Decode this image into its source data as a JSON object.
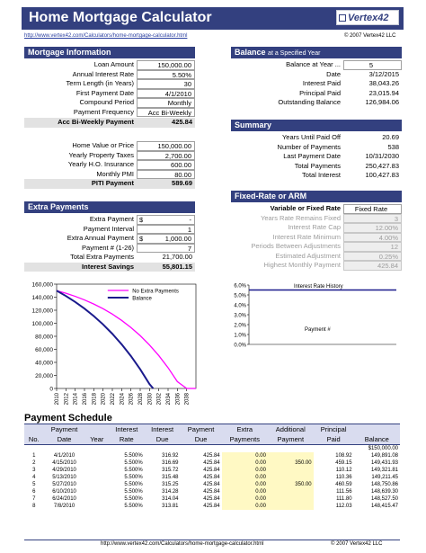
{
  "header": {
    "title": "Home Mortgage Calculator",
    "logo_text": "Vertex42",
    "url": "http://www.vertex42.com/Calculators/home-mortgage-calculator.html",
    "copyright": "© 2007 Vertex42 LLC"
  },
  "mortgage": {
    "title": "Mortgage Information",
    "rows": [
      {
        "label": "Loan Amount",
        "value": "150,000.00"
      },
      {
        "label": "Annual Interest Rate",
        "value": "5.50%"
      },
      {
        "label": "Term Length (in Years)",
        "value": "30"
      },
      {
        "label": "First Payment Date",
        "value": "4/1/2010"
      },
      {
        "label": "Compound Period",
        "value": "Monthly"
      },
      {
        "label": "Payment Frequency",
        "value": "Acc Bi-Weekly"
      }
    ],
    "payment_label": "Acc Bi-Weekly Payment",
    "payment_value": "425.84"
  },
  "home": {
    "rows": [
      {
        "label": "Home Value or Price",
        "value": "150,000.00"
      },
      {
        "label": "Yearly Property Taxes",
        "value": "2,700.00"
      },
      {
        "label": "Yearly H.O. Insurance",
        "value": "600.00"
      },
      {
        "label": "Monthly PMI",
        "value": "80.00"
      }
    ],
    "piti_label": "PITI Payment",
    "piti_value": "589.69"
  },
  "extra": {
    "title": "Extra Payments",
    "rows": [
      {
        "label": "Extra Payment",
        "sym": "$",
        "value": "-"
      },
      {
        "label": "Payment Interval",
        "sym": "",
        "value": "1"
      },
      {
        "label": "Extra Annual Payment",
        "sym": "$",
        "value": "1,000.00"
      },
      {
        "label": "Payment # (1-26)",
        "sym": "",
        "value": "7"
      }
    ],
    "total_label": "Total Extra Payments",
    "total_value": "21,700.00",
    "savings_label": "Interest Savings",
    "savings_value": "55,801.15"
  },
  "balance": {
    "title": "Balance",
    "title_suffix": "at a Specified Year",
    "year_label": "Balance at Year ...",
    "year_value": "5",
    "rows": [
      {
        "label": "Date",
        "value": "3/12/2015"
      },
      {
        "label": "Interest Paid",
        "value": "38,043.26"
      },
      {
        "label": "Principal Paid",
        "value": "23,015.94"
      },
      {
        "label": "Outstanding Balance",
        "value": "126,984.06"
      }
    ]
  },
  "summary": {
    "title": "Summary",
    "rows": [
      {
        "label": "Years Until Paid Off",
        "value": "20.69"
      },
      {
        "label": "Number of Payments",
        "value": "538"
      },
      {
        "label": "Last Payment Date",
        "value": "10/31/2030"
      },
      {
        "label": "Total Payments",
        "value": "250,427.83"
      },
      {
        "label": "Total Interest",
        "value": "100,427.83"
      }
    ]
  },
  "arm": {
    "title": "Fixed-Rate or ARM",
    "type_label": "Variable or Fixed Rate",
    "type_value": "Fixed Rate",
    "rows": [
      {
        "label": "Years Rate Remains Fixed",
        "value": "3"
      },
      {
        "label": "Interest Rate Cap",
        "value": "12.00%"
      },
      {
        "label": "Interest Rate Minimum",
        "value": "4.00%"
      },
      {
        "label": "Periods Between Adjustments",
        "value": "12"
      },
      {
        "label": "Estimated Adjustment",
        "value": "0.25%"
      },
      {
        "label": "Highest Monthly Payment",
        "value": "425.84"
      }
    ]
  },
  "chart_data": [
    {
      "type": "line",
      "title": "",
      "xlabel": "",
      "ylabel": "",
      "ylim": [
        0,
        160000
      ],
      "yticks": [
        "0",
        "20,000",
        "40,000",
        "60,000",
        "80,000",
        "100,000",
        "120,000",
        "140,000",
        "160,000"
      ],
      "xticks": [
        "2010",
        "2012",
        "2014",
        "2016",
        "2018",
        "2020",
        "2022",
        "2024",
        "2026",
        "2028",
        "2030",
        "2032",
        "2034",
        "2036",
        "2038"
      ],
      "legend_position": "top-right",
      "series": [
        {
          "name": "No Extra Payments",
          "color": "#ff00ff",
          "x": [
            2010,
            2012,
            2014,
            2016,
            2018,
            2020,
            2022,
            2024,
            2026,
            2028,
            2030,
            2032,
            2034,
            2036,
            2038,
            2040
          ],
          "y": [
            150000,
            146000,
            141300,
            135800,
            129500,
            122300,
            114000,
            104400,
            93500,
            81000,
            66700,
            50400,
            31800,
            10500,
            0,
            0
          ]
        },
        {
          "name": "Balance",
          "color": "#1a1a8c",
          "x": [
            2010,
            2012,
            2014,
            2016,
            2018,
            2020,
            2022,
            2024,
            2026,
            2028,
            2030,
            2030.8
          ],
          "y": [
            150000,
            141800,
            132700,
            122500,
            111000,
            98200,
            83800,
            67700,
            49700,
            29400,
            6700,
            0
          ]
        }
      ]
    },
    {
      "type": "line",
      "title": "Interest Rate History",
      "xlabel": "Payment #",
      "ylabel": "",
      "ylim": [
        0,
        6
      ],
      "yticks": [
        "0.0%",
        "1.0%",
        "2.0%",
        "3.0%",
        "4.0%",
        "5.0%",
        "6.0%"
      ],
      "series": [
        {
          "name": "",
          "color": "#1a1a8c",
          "x": [
            1,
            538
          ],
          "y": [
            5.5,
            5.5
          ]
        }
      ]
    }
  ],
  "schedule": {
    "title": "Payment Schedule",
    "headers1": [
      "",
      "Payment",
      "",
      "Interest",
      "Interest",
      "Payment",
      "Extra",
      "Additional",
      "Principal",
      ""
    ],
    "headers2": [
      "No.",
      "Date",
      "Year",
      "Rate",
      "Due",
      "Due",
      "Payments",
      "Payment",
      "Paid",
      "Balance"
    ],
    "start_balance": "$150,000.00",
    "rows": [
      {
        "no": "1",
        "date": "4/1/2010",
        "year": "",
        "rate": "5.500%",
        "int": "316.92",
        "due": "425.84",
        "extra": "0.00",
        "add": "",
        "prin": "108.92",
        "bal": "149,891.08"
      },
      {
        "no": "2",
        "date": "4/15/2010",
        "year": "",
        "rate": "5.500%",
        "int": "316.69",
        "due": "425.84",
        "extra": "0.00",
        "add": "350.00",
        "prin": "459.15",
        "bal": "149,431.93"
      },
      {
        "no": "3",
        "date": "4/29/2010",
        "year": "",
        "rate": "5.500%",
        "int": "315.72",
        "due": "425.84",
        "extra": "0.00",
        "add": "",
        "prin": "110.12",
        "bal": "149,321.81"
      },
      {
        "no": "4",
        "date": "5/13/2010",
        "year": "",
        "rate": "5.500%",
        "int": "315.48",
        "due": "425.84",
        "extra": "0.00",
        "add": "",
        "prin": "110.36",
        "bal": "149,211.45"
      },
      {
        "no": "5",
        "date": "5/27/2010",
        "year": "",
        "rate": "5.500%",
        "int": "315.25",
        "due": "425.84",
        "extra": "0.00",
        "add": "350.00",
        "prin": "460.59",
        "bal": "148,750.86"
      },
      {
        "no": "6",
        "date": "6/10/2010",
        "year": "",
        "rate": "5.500%",
        "int": "314.28",
        "due": "425.84",
        "extra": "0.00",
        "add": "",
        "prin": "111.56",
        "bal": "148,639.30"
      },
      {
        "no": "7",
        "date": "6/24/2010",
        "year": "",
        "rate": "5.500%",
        "int": "314.04",
        "due": "425.84",
        "extra": "0.00",
        "add": "",
        "prin": "111.80",
        "bal": "148,527.50"
      },
      {
        "no": "8",
        "date": "7/8/2010",
        "year": "",
        "rate": "5.500%",
        "int": "313.81",
        "due": "425.84",
        "extra": "0.00",
        "add": "",
        "prin": "112.03",
        "bal": "148,415.47"
      }
    ]
  },
  "footer": {
    "url": "http://www.vertex42.com/Calculators/home-mortgage-calculator.html",
    "copyright": "© 2007 Vertex42 LLC"
  }
}
